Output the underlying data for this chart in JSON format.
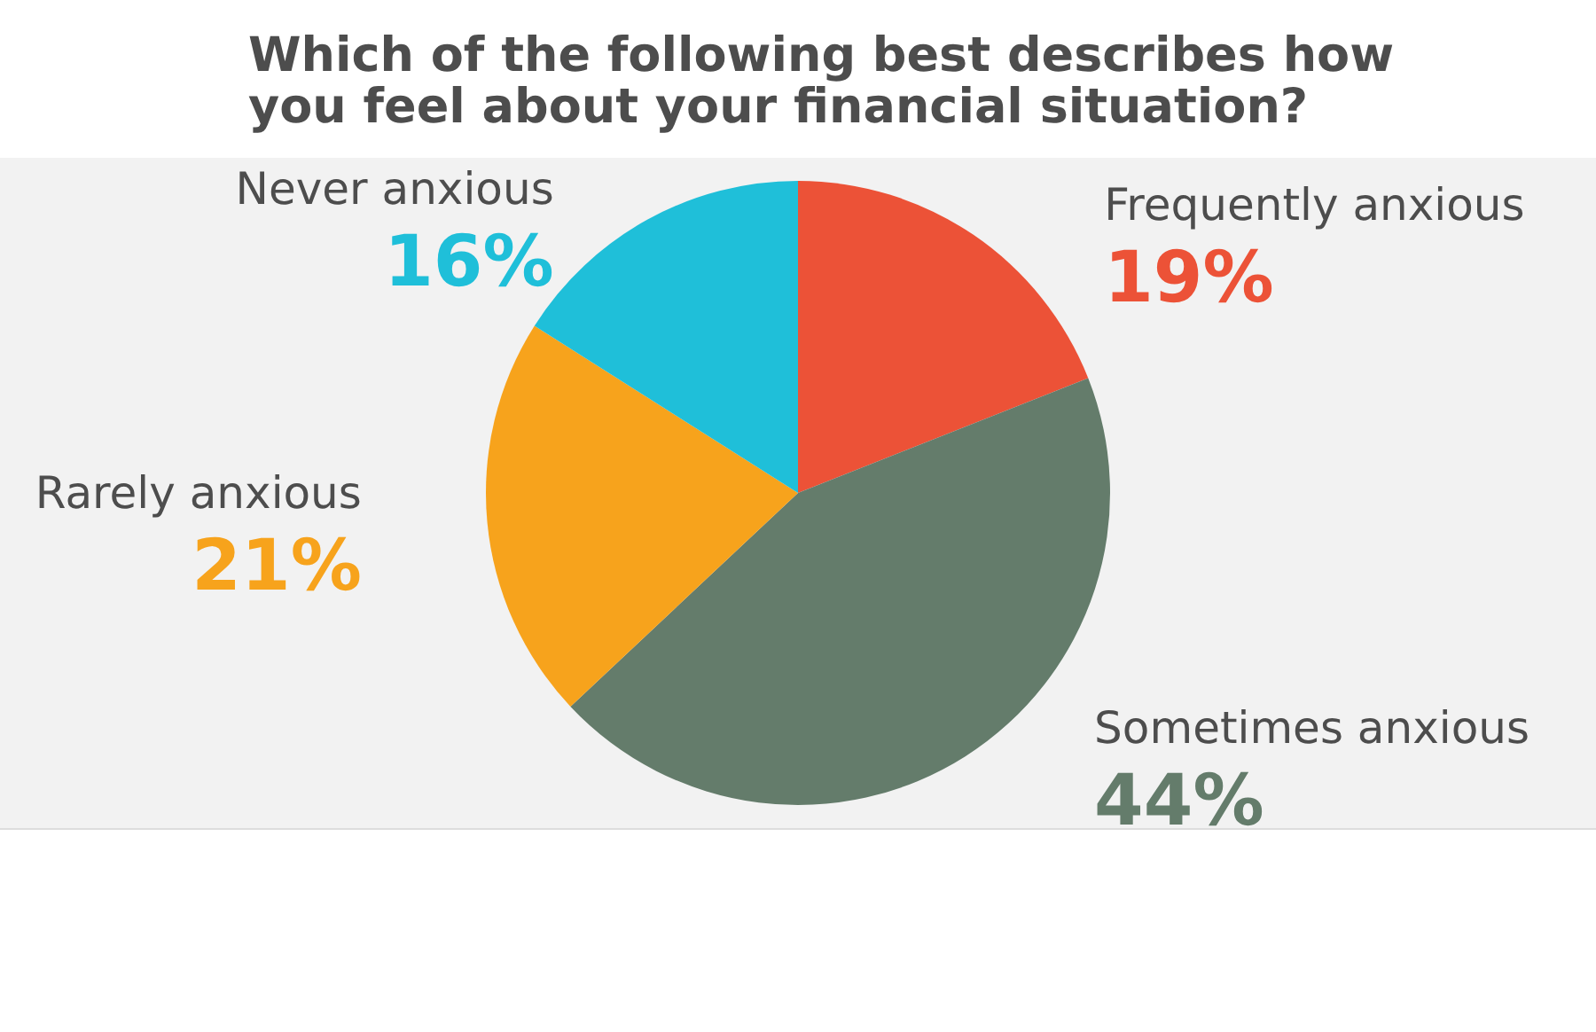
{
  "chart_data": {
    "type": "pie",
    "title": [
      "Which of the following best describes how",
      "you feel about your financial situation?"
    ],
    "categories": [
      "Frequently anxious",
      "Sometimes anxious",
      "Rarely anxious",
      "Never anxious"
    ],
    "values": [
      19,
      44,
      21,
      16
    ],
    "value_labels": [
      "19%",
      "44%",
      "21%",
      "16%"
    ],
    "colors": [
      "#ec5237",
      "#647c6b",
      "#f7a31c",
      "#1fbfd9"
    ]
  }
}
